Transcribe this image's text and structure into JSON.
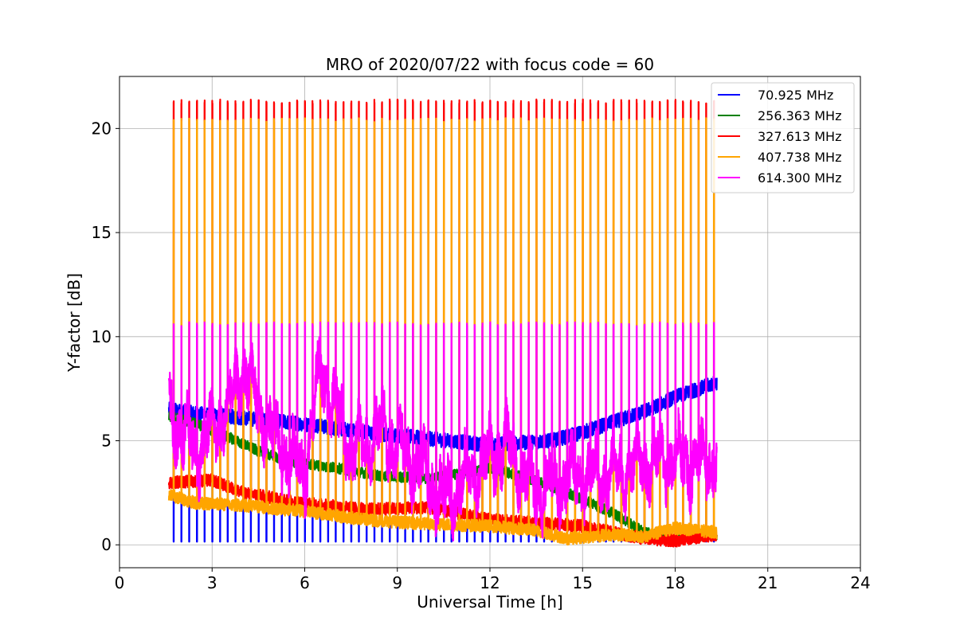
{
  "chart_data": {
    "type": "line",
    "title": "MRO of 2020/07/22 with focus code = 60",
    "xlabel": "Universal Time [h]",
    "ylabel": "Y-factor [dB]",
    "xlim": [
      0,
      24
    ],
    "ylim": [
      -1.1,
      22.5
    ],
    "xticks": [
      0,
      3,
      6,
      9,
      12,
      15,
      18,
      21,
      24
    ],
    "yticks": [
      0,
      5,
      10,
      15,
      20
    ],
    "grid": true,
    "legend_position": "top-right",
    "x_start": 1.6,
    "x_end": 19.35,
    "spike_interval_h": 0.25,
    "series": [
      {
        "name": " 70.925 MHz",
        "color": "#0000ff",
        "baseline": [
          [
            1.6,
            6.5
          ],
          [
            2.5,
            6.3
          ],
          [
            4,
            6.1
          ],
          [
            6,
            5.8
          ],
          [
            8,
            5.4
          ],
          [
            10,
            5.1
          ],
          [
            12,
            4.8
          ],
          [
            14,
            5.0
          ],
          [
            15,
            5.4
          ],
          [
            16,
            5.9
          ],
          [
            17,
            6.4
          ],
          [
            18,
            7.1
          ],
          [
            19.35,
            7.8
          ]
        ],
        "dip": 0.15
      },
      {
        "name": "256.363 MHz",
        "color": "#008000",
        "baseline": [
          [
            1.6,
            6.2
          ],
          [
            2.5,
            5.8
          ],
          [
            3.5,
            5.2
          ],
          [
            4.5,
            4.5
          ],
          [
            5.5,
            4.0
          ],
          [
            7,
            3.7
          ],
          [
            8.5,
            3.3
          ],
          [
            10,
            3.2
          ],
          [
            11,
            3.4
          ],
          [
            12,
            3.7
          ],
          [
            13,
            3.3
          ],
          [
            14,
            2.8
          ],
          [
            15,
            2.2
          ],
          [
            16,
            1.5
          ],
          [
            17,
            0.6
          ],
          [
            18,
            0.3
          ],
          [
            19.35,
            0.5
          ]
        ]
      },
      {
        "name": "327.613 MHz",
        "color": "#ff0000",
        "baseline": [
          [
            1.6,
            3.0
          ],
          [
            3,
            3.1
          ],
          [
            4,
            2.5
          ],
          [
            6,
            2.0
          ],
          [
            8,
            1.7
          ],
          [
            10,
            1.8
          ],
          [
            11,
            1.5
          ],
          [
            12,
            1.2
          ],
          [
            14,
            1.0
          ],
          [
            15,
            0.9
          ],
          [
            16,
            0.6
          ],
          [
            17,
            0.3
          ],
          [
            18,
            0.2
          ],
          [
            19.35,
            0.5
          ]
        ],
        "spike_top": 21.3
      },
      {
        "name": "407.738 MHz",
        "color": "#ffa500",
        "baseline": [
          [
            1.6,
            2.4
          ],
          [
            2.5,
            2.0
          ],
          [
            4,
            1.9
          ],
          [
            6,
            1.6
          ],
          [
            8,
            1.2
          ],
          [
            10,
            1.0
          ],
          [
            12,
            0.9
          ],
          [
            13.5,
            0.7
          ],
          [
            14.5,
            0.3
          ],
          [
            16,
            0.5
          ],
          [
            17,
            0.4
          ],
          [
            18,
            0.8
          ],
          [
            19.35,
            0.6
          ]
        ],
        "spike_top": 20.4
      },
      {
        "name": "614.300 MHz",
        "color": "#ff00ff",
        "baseline": [
          [
            1.6,
            6.2
          ],
          [
            2.5,
            4.5
          ],
          [
            3.5,
            6.5
          ],
          [
            4,
            8.5
          ],
          [
            5,
            5.0
          ],
          [
            6,
            3.5
          ],
          [
            6.5,
            8.5
          ],
          [
            7.5,
            4.5
          ],
          [
            8.5,
            5.5
          ],
          [
            9.5,
            4.0
          ],
          [
            10.5,
            2.2
          ],
          [
            11.5,
            3.5
          ],
          [
            12.5,
            4.8
          ],
          [
            13.5,
            2.6
          ],
          [
            14.5,
            3.2
          ],
          [
            15.5,
            3.3
          ],
          [
            16.5,
            3.7
          ],
          [
            17.5,
            4.1
          ],
          [
            18.5,
            4.0
          ],
          [
            19.35,
            4.1
          ]
        ],
        "spike_top": 10.6
      }
    ]
  }
}
